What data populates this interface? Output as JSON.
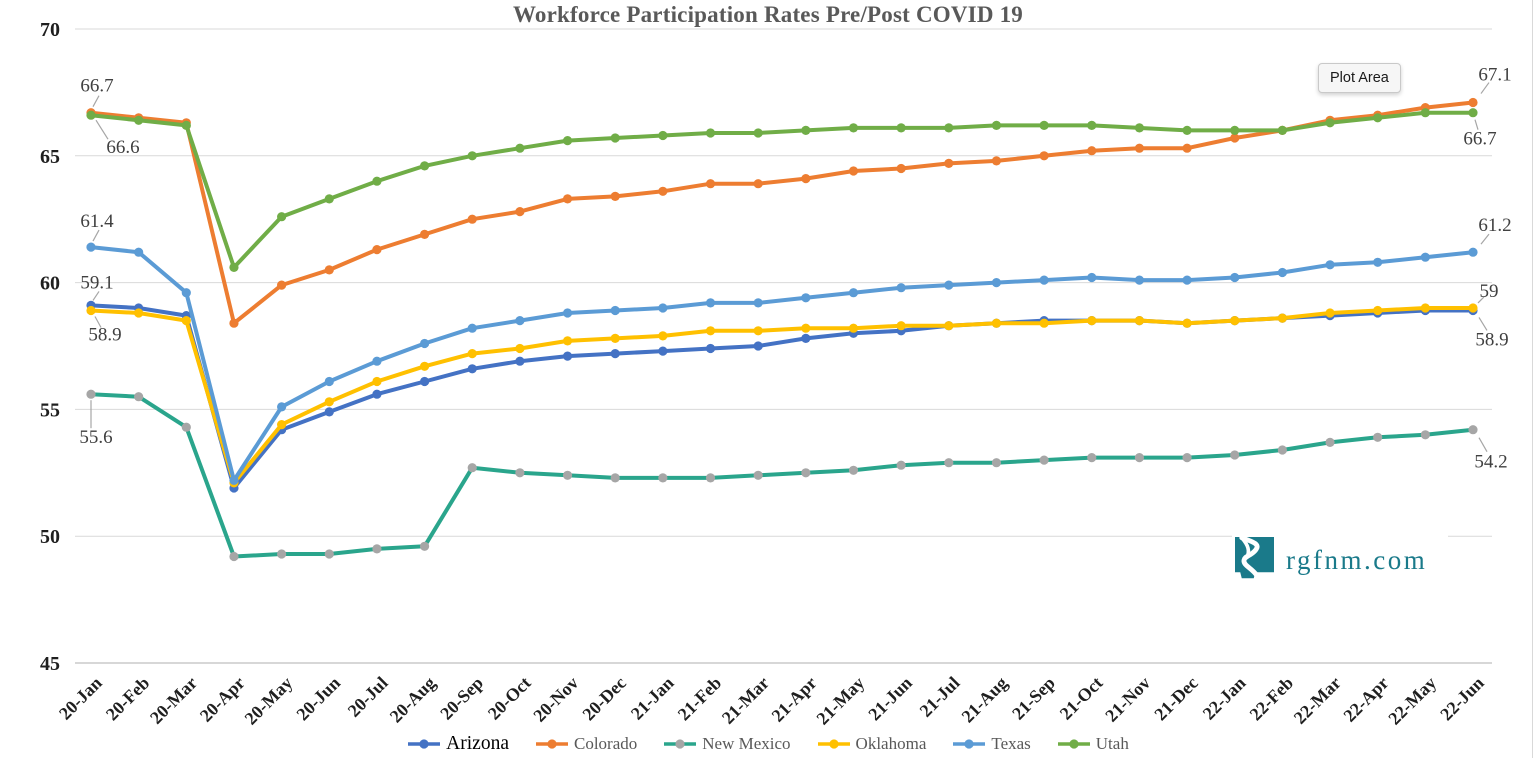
{
  "title": "Workforce Participation Rates Pre/Post COVID 19",
  "plot_area_label": "Plot Area",
  "logo": {
    "text": "rgfnm.com",
    "color": "#1a7a8a",
    "icon": "new-mexico-river-icon"
  },
  "colors": {
    "gridline": "#d9d9d9",
    "axis_line": "#bfbfbf",
    "leader_line": "#a6a6a6",
    "axis_text": "#1f1f1f",
    "point_label_text": "#404040",
    "title_text": "#595959"
  },
  "chart_data": {
    "type": "line",
    "title": "Workforce Participation Rates Pre/Post COVID 19",
    "xlabel": "",
    "ylabel": "",
    "ylim": [
      45,
      70
    ],
    "yticks": [
      70,
      65,
      60,
      55,
      50,
      45
    ],
    "grid": true,
    "legend_position": "bottom",
    "marker": "circle",
    "categories": [
      "20-Jan",
      "20-Feb",
      "20-Mar",
      "20-Apr",
      "20-May",
      "20-Jun",
      "20-Jul",
      "20-Aug",
      "20-Sep",
      "20-Oct",
      "20-Nov",
      "20-Dec",
      "21-Jan",
      "21-Feb",
      "21-Mar",
      "21-Apr",
      "21-May",
      "21-Jun",
      "21-Jul",
      "21-Aug",
      "21-Sep",
      "21-Oct",
      "21-Nov",
      "21-Dec",
      "22-Jan",
      "22-Feb",
      "22-Mar",
      "22-Apr",
      "22-May",
      "22-Jun"
    ],
    "series": [
      {
        "name": "Arizona",
        "color": "#4472c4",
        "marker_color": "#4472c4",
        "values": [
          59.1,
          59.0,
          58.7,
          51.9,
          54.2,
          54.9,
          55.6,
          56.1,
          56.6,
          56.9,
          57.1,
          57.2,
          57.3,
          57.4,
          57.5,
          57.8,
          58.0,
          58.1,
          58.3,
          58.4,
          58.5,
          58.5,
          58.5,
          58.4,
          58.5,
          58.6,
          58.7,
          58.8,
          58.9,
          58.9
        ]
      },
      {
        "name": "Colorado",
        "color": "#ed7d31",
        "marker_color": "#ed7d31",
        "values": [
          66.7,
          66.5,
          66.3,
          58.4,
          59.9,
          60.5,
          61.3,
          61.9,
          62.5,
          62.8,
          63.3,
          63.4,
          63.6,
          63.9,
          63.9,
          64.1,
          64.4,
          64.5,
          64.7,
          64.8,
          65.0,
          65.2,
          65.3,
          65.3,
          65.7,
          66.0,
          66.4,
          66.6,
          66.9,
          67.1
        ]
      },
      {
        "name": "New Mexico",
        "color": "#2aa58c",
        "marker_color": "#a6a6a6",
        "values": [
          55.6,
          55.5,
          54.3,
          49.2,
          49.3,
          49.3,
          49.5,
          49.6,
          52.7,
          52.5,
          52.4,
          52.3,
          52.3,
          52.3,
          52.4,
          52.5,
          52.6,
          52.8,
          52.9,
          52.9,
          53.0,
          53.1,
          53.1,
          53.1,
          53.2,
          53.4,
          53.7,
          53.9,
          54.0,
          54.2
        ]
      },
      {
        "name": "Oklahoma",
        "color": "#ffc000",
        "marker_color": "#ffc000",
        "values": [
          58.9,
          58.8,
          58.5,
          52.1,
          54.4,
          55.3,
          56.1,
          56.7,
          57.2,
          57.4,
          57.7,
          57.8,
          57.9,
          58.1,
          58.1,
          58.2,
          58.2,
          58.3,
          58.3,
          58.4,
          58.4,
          58.5,
          58.5,
          58.4,
          58.5,
          58.6,
          58.8,
          58.9,
          59.0,
          59.0
        ]
      },
      {
        "name": "Texas",
        "color": "#5b9bd5",
        "marker_color": "#5b9bd5",
        "values": [
          61.4,
          61.2,
          59.6,
          52.2,
          55.1,
          56.1,
          56.9,
          57.6,
          58.2,
          58.5,
          58.8,
          58.9,
          59.0,
          59.2,
          59.2,
          59.4,
          59.6,
          59.8,
          59.9,
          60.0,
          60.1,
          60.2,
          60.1,
          60.1,
          60.2,
          60.4,
          60.7,
          60.8,
          61.0,
          61.2
        ]
      },
      {
        "name": "Utah",
        "color": "#70ad47",
        "marker_color": "#70ad47",
        "values": [
          66.6,
          66.4,
          66.2,
          60.6,
          62.6,
          63.3,
          64.0,
          64.6,
          65.0,
          65.3,
          65.6,
          65.7,
          65.8,
          65.9,
          65.9,
          66.0,
          66.1,
          66.1,
          66.1,
          66.2,
          66.2,
          66.2,
          66.1,
          66.0,
          66.0,
          66.0,
          66.3,
          66.5,
          66.7,
          66.7
        ]
      }
    ],
    "point_labels": [
      {
        "series": "Colorado",
        "end": "first",
        "text": "66.7"
      },
      {
        "series": "Utah",
        "end": "first",
        "text": "66.6"
      },
      {
        "series": "Texas",
        "end": "first",
        "text": "61.4"
      },
      {
        "series": "Arizona",
        "end": "first",
        "text": "59.1"
      },
      {
        "series": "Oklahoma",
        "end": "first",
        "text": "58.9"
      },
      {
        "series": "New Mexico",
        "end": "first",
        "text": "55.6"
      },
      {
        "series": "Colorado",
        "end": "last",
        "text": "67.1"
      },
      {
        "series": "Utah",
        "end": "last",
        "text": "66.7"
      },
      {
        "series": "Texas",
        "end": "last",
        "text": "61.2"
      },
      {
        "series": "Oklahoma",
        "end": "last",
        "text": "59"
      },
      {
        "series": "Arizona",
        "end": "last",
        "text": "58.9"
      },
      {
        "series": "New Mexico",
        "end": "last",
        "text": "54.2"
      }
    ]
  }
}
